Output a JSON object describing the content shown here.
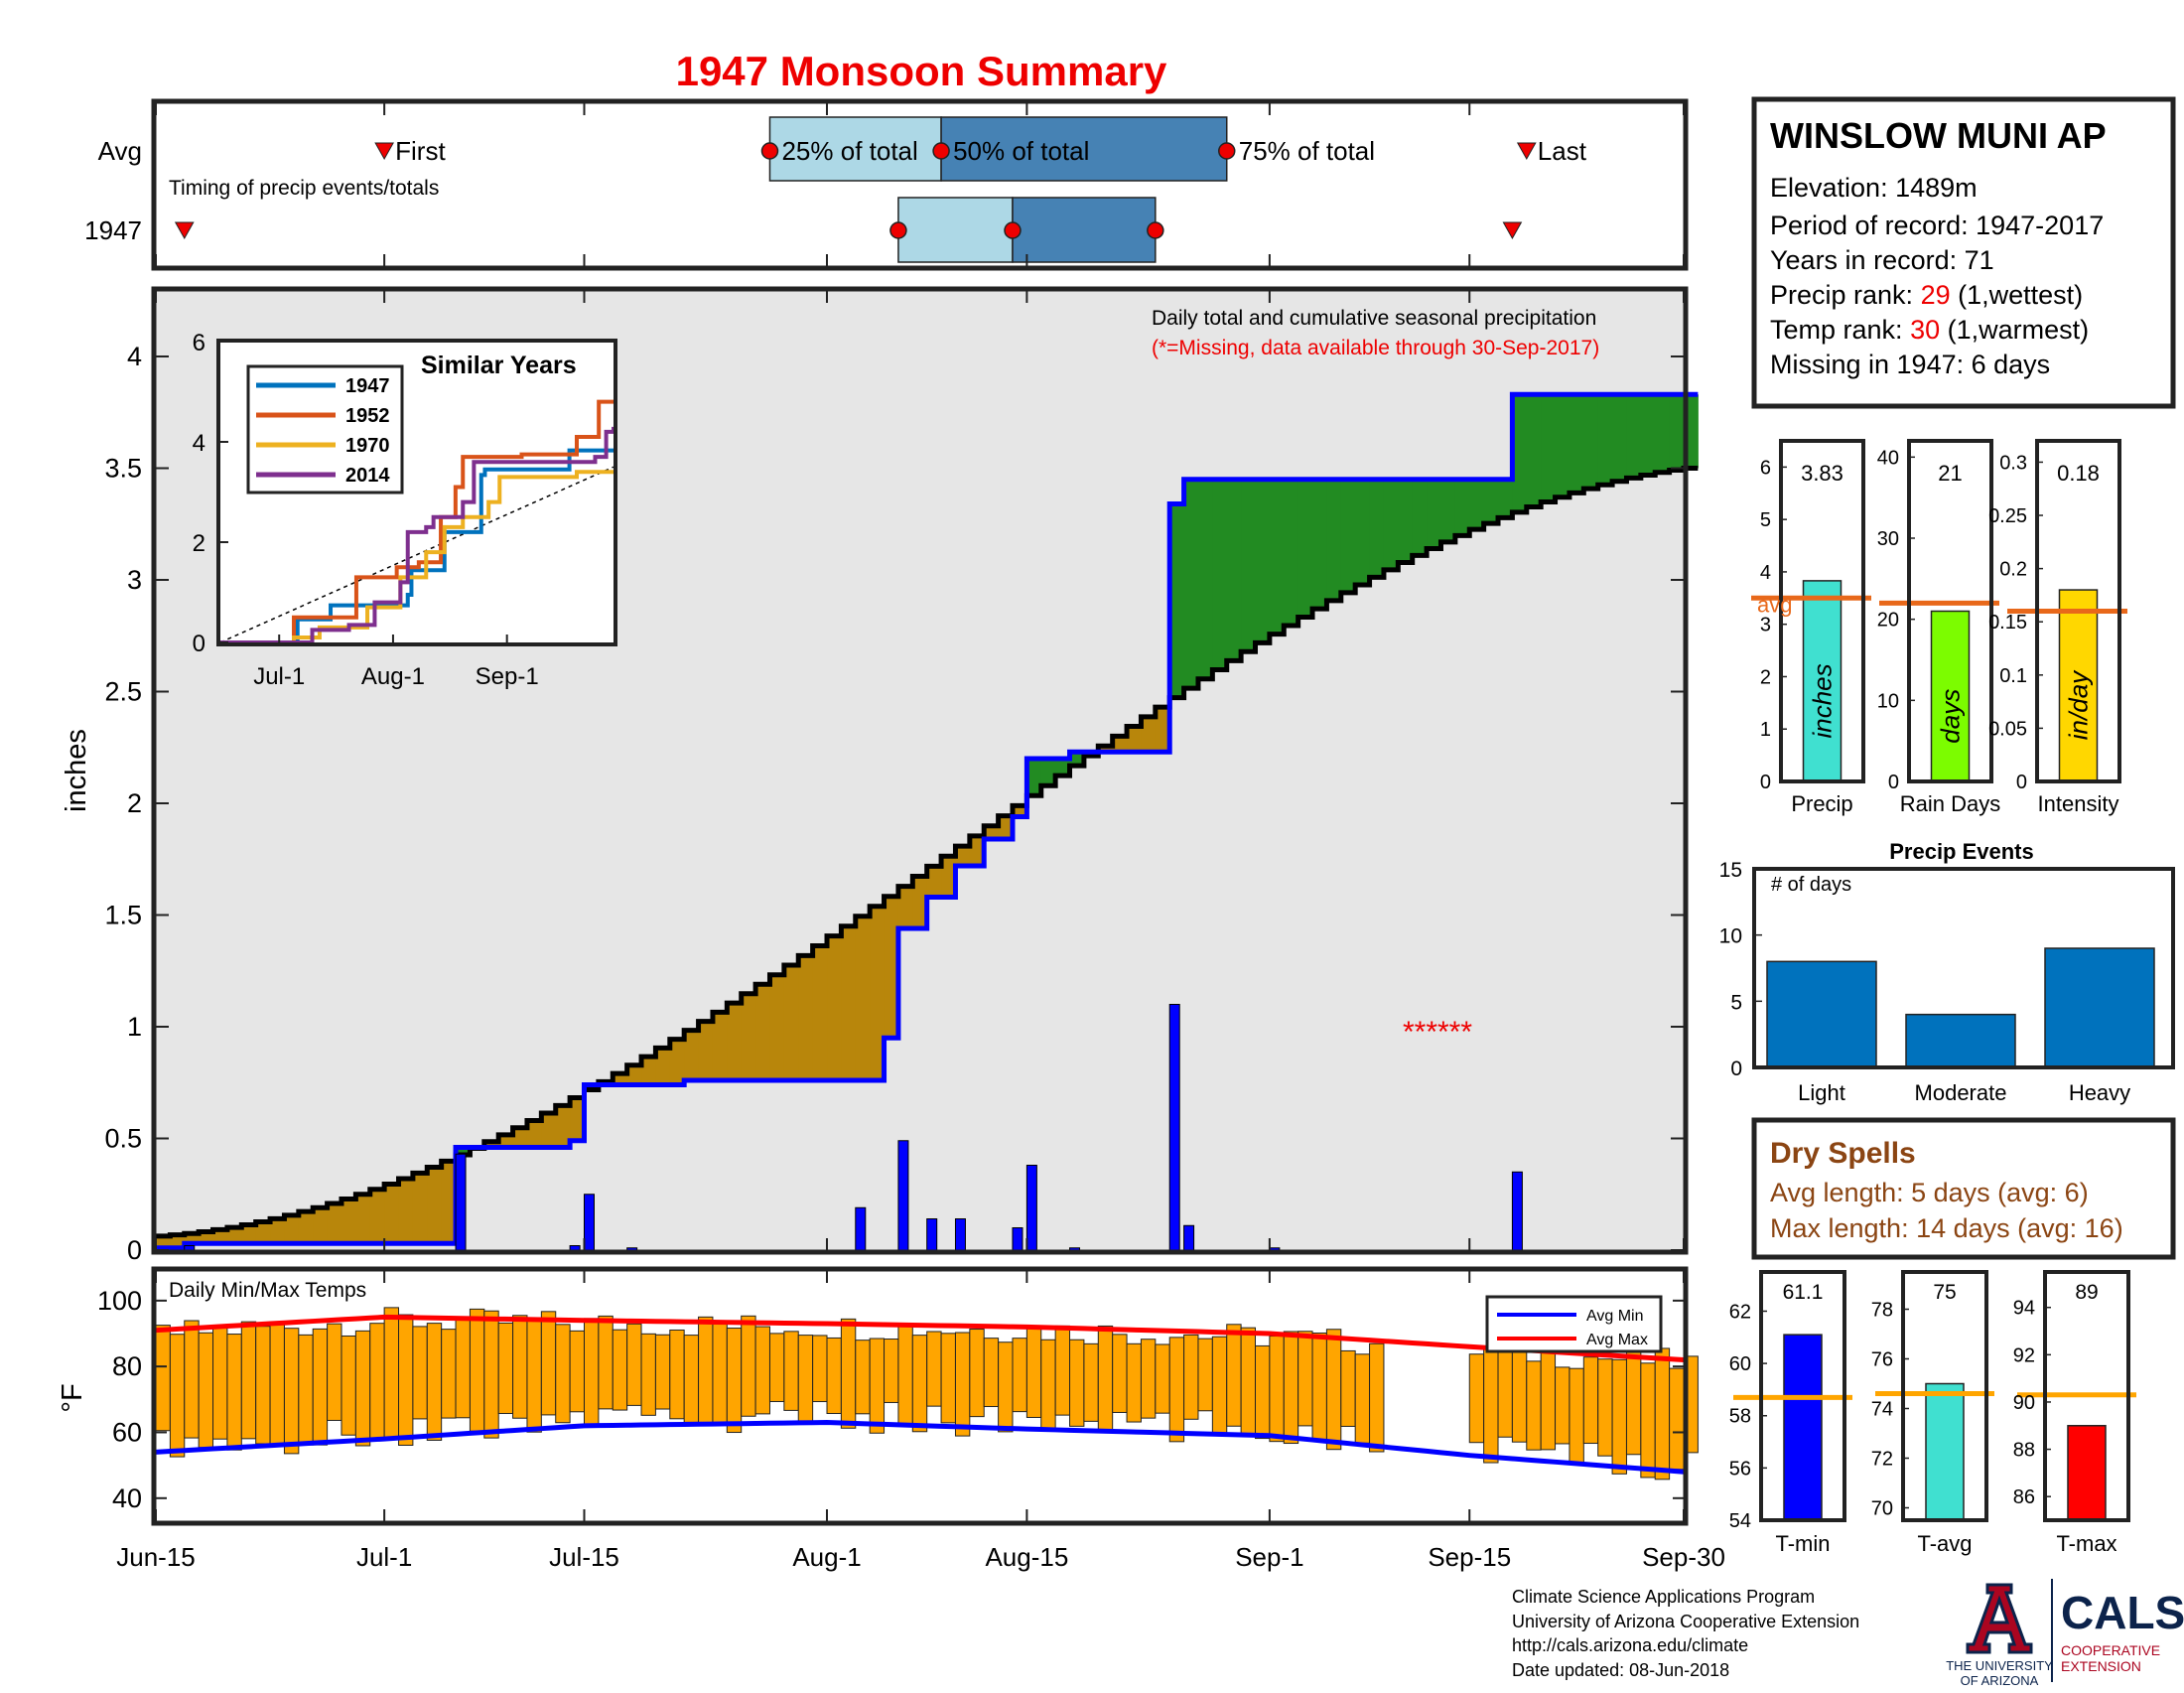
{
  "title": "1947 Monsoon Summary",
  "station": {
    "name": "WINSLOW MUNI AP",
    "elevation": "Elevation: 1489m",
    "period": "Period of record: 1947-2017",
    "years": "Years in record: 71",
    "precip_rank_label": "Precip rank: ",
    "precip_rank": "29",
    "precip_rank_note": " (1,wettest)",
    "temp_rank_label": "Temp rank: ",
    "temp_rank": "30",
    "temp_rank_note": " (1,warmest)",
    "missing": "Missing in 1947: 6 days"
  },
  "timing": {
    "row_labels": [
      "Avg",
      "1947"
    ],
    "caption": "Timing of precip events/totals",
    "first_label": "First",
    "last_label": "Last",
    "p25_label": "25% of total",
    "p50_label": "50% of total",
    "p75_label": "75% of total",
    "avg": {
      "first": "Jul-1",
      "p25": "Jul-28",
      "p50": "Aug-9",
      "p75": "Aug-29",
      "last": "Sep-19"
    },
    "year": {
      "first": "Jun-17",
      "p25": "Aug-6",
      "p50": "Aug-14",
      "p75": "Aug-24",
      "last": "Sep-18"
    }
  },
  "main_chart": {
    "ylabel": "inches",
    "note": "Daily total and cumulative seasonal precipitation",
    "missing_note": "(*=Missing, data available through 30-Sep-2017)",
    "missing_marker": "******",
    "x_ticks": [
      "Jun-15",
      "Jul-1",
      "Jul-15",
      "Aug-1",
      "Aug-15",
      "Sep-1",
      "Sep-15",
      "Sep-30"
    ],
    "y_ticks": [
      "0",
      "0.5",
      "1",
      "1.5",
      "2",
      "2.5",
      "3",
      "3.5",
      "4"
    ],
    "colors": {
      "observed": "#0000ff",
      "average": "#000000",
      "above": "#228b22",
      "below": "#b8860b",
      "bars": "#0000ff",
      "bg": "#e6e6e6"
    }
  },
  "inset": {
    "title": "Similar Years",
    "x_ticks": [
      "Jul-1",
      "Aug-1",
      "Sep-1"
    ],
    "y_ticks": [
      "0",
      "2",
      "4",
      "6"
    ],
    "legend": [
      {
        "name": "1947",
        "color": "#0072bd"
      },
      {
        "name": "1952",
        "color": "#d95319"
      },
      {
        "name": "1970",
        "color": "#edb120"
      },
      {
        "name": "2014",
        "color": "#7e2f8e"
      }
    ]
  },
  "temps": {
    "label": "Daily Min/Max Temps",
    "ylabel": "°F",
    "y_ticks": [
      "40",
      "60",
      "80",
      "100"
    ],
    "legend": [
      {
        "name": "Avg Min",
        "color": "#0000ff"
      },
      {
        "name": "Avg Max",
        "color": "#ff0000"
      }
    ]
  },
  "summary_bars": [
    {
      "category": "Precip",
      "value_label": "3.83",
      "value": 3.83,
      "avg": 3.5,
      "unit": "inches",
      "color": "#40e0d0",
      "ymax": 6.5,
      "ticks": [
        "0",
        "1",
        "2",
        "3",
        "4",
        "5",
        "6"
      ],
      "avg_label": "avg"
    },
    {
      "category": "Rain Days",
      "value_label": "21",
      "value": 21,
      "avg": 22,
      "unit": "days",
      "color": "#7cfc00",
      "ymax": 42,
      "ticks": [
        "0",
        "10",
        "20",
        "30",
        "40"
      ]
    },
    {
      "category": "Intensity",
      "value_label": "0.18",
      "value": 0.18,
      "avg": 0.16,
      "unit": "in/day",
      "color": "#ffd700",
      "ymax": 0.32,
      "ticks": [
        "0",
        "0.05",
        "0.1",
        "0.15",
        "0.2",
        "0.25",
        "0.3"
      ]
    }
  ],
  "precip_events": {
    "title": "Precip Events",
    "ylabel": "# of days",
    "categories": [
      "Light",
      "Moderate",
      "Heavy"
    ],
    "values": [
      8,
      4,
      9
    ],
    "y_ticks": [
      "0",
      "5",
      "10",
      "15"
    ],
    "color": "#0072bd"
  },
  "dry_spells": {
    "title": "Dry Spells",
    "avg_length": "Avg length: 5 days (avg: 6)",
    "max_length": "Max length: 14 days (avg: 16)"
  },
  "temp_summary": [
    {
      "category": "T-min",
      "value_label": "61.1",
      "value": 61.1,
      "avg": 58.7,
      "color": "#0000ff",
      "ymin": 54,
      "ymax": 63.5,
      "ticks": [
        "54",
        "56",
        "58",
        "60",
        "62"
      ]
    },
    {
      "category": "T-avg",
      "value_label": "75",
      "value": 75,
      "avg": 74.6,
      "color": "#40e0d0",
      "ymin": 69.5,
      "ymax": 79.5,
      "ticks": [
        "70",
        "72",
        "74",
        "76",
        "78"
      ]
    },
    {
      "category": "T-max",
      "value_label": "89",
      "value": 89,
      "avg": 90.3,
      "color": "#ff0000",
      "ymin": 85,
      "ymax": 95.5,
      "ticks": [
        "86",
        "88",
        "90",
        "92",
        "94"
      ]
    }
  ],
  "footer": {
    "line1": "Climate Science Applications Program",
    "line2": "University of Arizona Cooperative Extension",
    "line3": "http://cals.arizona.edu/climate",
    "line4": " Date updated: 08-Jun-2018"
  },
  "logos": {
    "ua_line1": "THE UNIVERSITY",
    "ua_line2": "OF ARIZONA",
    "cals": "CALS",
    "cals_line1": "COOPERATIVE",
    "cals_line2": "EXTENSION"
  },
  "chart_data": [
    {
      "type": "area",
      "title": "Daily total and cumulative seasonal precipitation",
      "ylabel": "inches",
      "xlim": [
        "Jun-15",
        "Sep-30"
      ],
      "ylim": [
        0,
        4.4
      ],
      "series": [
        {
          "name": "observed",
          "x": [
            "Jun-15",
            "Jun-17",
            "Jul-5",
            "Jul-6",
            "Jul-14",
            "Jul-15",
            "Jul-22",
            "Aug-1",
            "Aug-5",
            "Aug-6",
            "Aug-8",
            "Aug-10",
            "Aug-12",
            "Aug-14",
            "Aug-15",
            "Aug-18",
            "Aug-24",
            "Aug-25",
            "Aug-26",
            "Sep-18",
            "Sep-30"
          ],
          "y": [
            0.01,
            0.03,
            0.03,
            0.46,
            0.49,
            0.74,
            0.76,
            0.76,
            0.95,
            1.44,
            1.58,
            1.72,
            1.84,
            1.94,
            2.2,
            2.23,
            2.23,
            3.34,
            3.45,
            3.83,
            3.83
          ]
        }
      ],
      "daily_bars": {
        "x": [
          "Jun-17",
          "Jul-6",
          "Jul-14",
          "Jul-15",
          "Jul-18",
          "Aug-3",
          "Aug-6",
          "Aug-8",
          "Aug-10",
          "Aug-14",
          "Aug-15",
          "Aug-18",
          "Aug-25",
          "Aug-26",
          "Sep-1",
          "Sep-18"
        ],
        "y": [
          0.02,
          0.43,
          0.02,
          0.25,
          0.01,
          0.19,
          0.49,
          0.14,
          0.14,
          0.1,
          0.38,
          0.01,
          1.1,
          0.11,
          0.01,
          0.35
        ]
      }
    },
    {
      "type": "line",
      "title": "Similar Years",
      "x_ticks": [
        "Jul-1",
        "Aug-1",
        "Sep-1"
      ],
      "ylim": [
        0,
        6
      ],
      "series": [
        {
          "name": "1947",
          "x": [
            "Jun-15",
            "Jul-6",
            "Jul-15",
            "Aug-5",
            "Aug-6",
            "Aug-15",
            "Aug-25",
            "Aug-26",
            "Sep-18",
            "Sep-30"
          ],
          "y": [
            0,
            0.46,
            0.74,
            0.95,
            1.44,
            2.2,
            3.34,
            3.45,
            3.83,
            3.83
          ]
        },
        {
          "name": "1952",
          "x": [
            "Jun-15",
            "Jul-3",
            "Jul-5",
            "Jul-20",
            "Jul-22",
            "Aug-2",
            "Aug-8",
            "Aug-14",
            "Aug-18",
            "Aug-20",
            "Sep-5",
            "Sep-20",
            "Sep-26",
            "Sep-30"
          ],
          "y": [
            0,
            0,
            0.5,
            0.5,
            1.3,
            1.5,
            1.6,
            2.5,
            3.1,
            3.7,
            3.75,
            4.1,
            4.8,
            4.8
          ]
        },
        {
          "name": "1970",
          "x": [
            "Jun-15",
            "Jul-5",
            "Jul-12",
            "Jul-25",
            "Aug-1",
            "Aug-3",
            "Aug-10",
            "Aug-15",
            "Aug-20",
            "Aug-27",
            "Aug-30",
            "Sep-20",
            "Sep-30"
          ],
          "y": [
            0,
            0.1,
            0.3,
            0.7,
            0.7,
            1.3,
            1.8,
            2.3,
            2.5,
            2.8,
            3.3,
            3.4,
            3.4
          ]
        },
        {
          "name": "2014",
          "x": [
            "Jun-15",
            "Jul-10",
            "Jul-20",
            "Jul-25",
            "Jul-27",
            "Aug-3",
            "Aug-5",
            "Aug-10",
            "Aug-12",
            "Aug-20",
            "Aug-23",
            "Sep-5",
            "Sep-25",
            "Sep-28",
            "Sep-30"
          ],
          "y": [
            0,
            0.25,
            0.35,
            0.35,
            0.8,
            1.2,
            2.2,
            2.3,
            2.5,
            2.8,
            3.6,
            3.6,
            3.7,
            4.2,
            4.3
          ]
        }
      ]
    },
    {
      "type": "bar",
      "title": "Daily Min/Max Temps",
      "ylabel": "°F",
      "ylim": [
        33,
        109
      ],
      "series": [
        {
          "name": "Avg Min",
          "x": [
            "Jun-15",
            "Jul-1",
            "Jul-15",
            "Aug-1",
            "Aug-15",
            "Sep-1",
            "Sep-15",
            "Sep-30"
          ],
          "y": [
            54,
            58,
            62,
            63,
            61,
            59,
            53,
            48
          ]
        },
        {
          "name": "Avg Max",
          "x": [
            "Jun-15",
            "Jul-1",
            "Jul-15",
            "Aug-1",
            "Aug-15",
            "Sep-1",
            "Sep-15",
            "Sep-30"
          ],
          "y": [
            91,
            95,
            94,
            93,
            92,
            90,
            86,
            82
          ]
        }
      ]
    },
    {
      "type": "bar",
      "title": "Precip Events",
      "categories": [
        "Light",
        "Moderate",
        "Heavy"
      ],
      "values": [
        8,
        4,
        9
      ],
      "ylim": [
        0,
        15
      ]
    },
    {
      "type": "bar",
      "categories": [
        "Precip",
        "Rain Days",
        "Intensity"
      ],
      "values": [
        3.83,
        21,
        0.18
      ],
      "averages": [
        3.5,
        22,
        0.16
      ]
    },
    {
      "type": "bar",
      "categories": [
        "T-min",
        "T-avg",
        "T-max"
      ],
      "values": [
        61.1,
        75,
        89
      ],
      "averages": [
        58.7,
        74.6,
        90.3
      ]
    }
  ]
}
